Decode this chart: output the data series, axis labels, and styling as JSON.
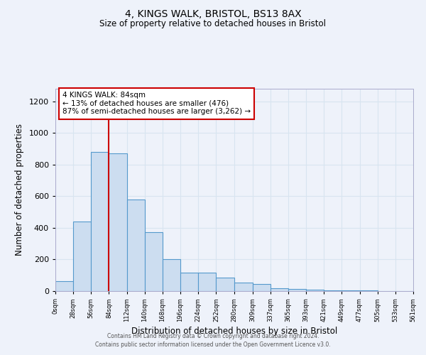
{
  "title": "4, KINGS WALK, BRISTOL, BS13 8AX",
  "subtitle": "Size of property relative to detached houses in Bristol",
  "xlabel": "Distribution of detached houses by size in Bristol",
  "ylabel": "Number of detached properties",
  "bar_color": "#ccddf0",
  "bar_edge_color": "#5599cc",
  "background_color": "#eef2fa",
  "grid_color": "#d8e4f0",
  "vline_x": 84,
  "vline_color": "#cc0000",
  "annotation_line1": "4 KINGS WALK: 84sqm",
  "annotation_line2": "← 13% of detached houses are smaller (476)",
  "annotation_line3": "87% of semi-detached houses are larger (3,262) →",
  "annotation_box_color": "#ffffff",
  "annotation_box_edge": "#cc0000",
  "ylim": [
    0,
    1280
  ],
  "bin_edges": [
    0,
    28,
    56,
    84,
    112,
    140,
    168,
    196,
    224,
    252,
    280,
    309,
    337,
    365,
    393,
    421,
    449,
    477,
    505,
    533,
    561
  ],
  "bar_heights": [
    65,
    440,
    880,
    870,
    580,
    375,
    200,
    115,
    115,
    85,
    55,
    45,
    20,
    15,
    8,
    5,
    5,
    5,
    2,
    2
  ],
  "yticks": [
    0,
    200,
    400,
    600,
    800,
    1000,
    1200
  ],
  "footer_line1": "Contains HM Land Registry data © Crown copyright and database right 2024.",
  "footer_line2": "Contains public sector information licensed under the Open Government Licence v3.0."
}
